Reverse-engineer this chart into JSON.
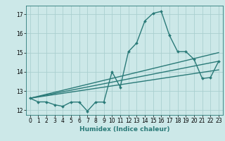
{
  "title": "",
  "xlabel": "Humidex (Indice chaleur)",
  "ylabel": "",
  "xlim": [
    -0.5,
    23.5
  ],
  "ylim": [
    11.75,
    17.45
  ],
  "yticks": [
    12,
    13,
    14,
    15,
    16,
    17
  ],
  "xticks": [
    0,
    1,
    2,
    3,
    4,
    5,
    6,
    7,
    8,
    9,
    10,
    11,
    12,
    13,
    14,
    15,
    16,
    17,
    18,
    19,
    20,
    21,
    22,
    23
  ],
  "bg_color": "#cce8e8",
  "grid_color": "#aacfcf",
  "line_color": "#2a7a78",
  "line_width": 1.0,
  "marker": "D",
  "marker_size": 2.0,
  "main_line": [
    0,
    12.62,
    1,
    12.43,
    2,
    12.43,
    3,
    12.28,
    4,
    12.2,
    5,
    12.42,
    6,
    12.42,
    7,
    11.95,
    8,
    12.42,
    9,
    12.42,
    10,
    14.0,
    11,
    13.2,
    12,
    15.05,
    13,
    15.5,
    14,
    16.65,
    15,
    17.05,
    16,
    17.15,
    17,
    15.9,
    18,
    15.05,
    19,
    15.05,
    20,
    14.65,
    21,
    13.65,
    22,
    13.7,
    23,
    14.55
  ],
  "trend_lines": [
    [
      0,
      12.62,
      23,
      15.0
    ],
    [
      0,
      12.62,
      23,
      14.55
    ],
    [
      0,
      12.62,
      23,
      14.1
    ]
  ],
  "tick_fontsize": 5.5,
  "xlabel_fontsize": 6.5
}
